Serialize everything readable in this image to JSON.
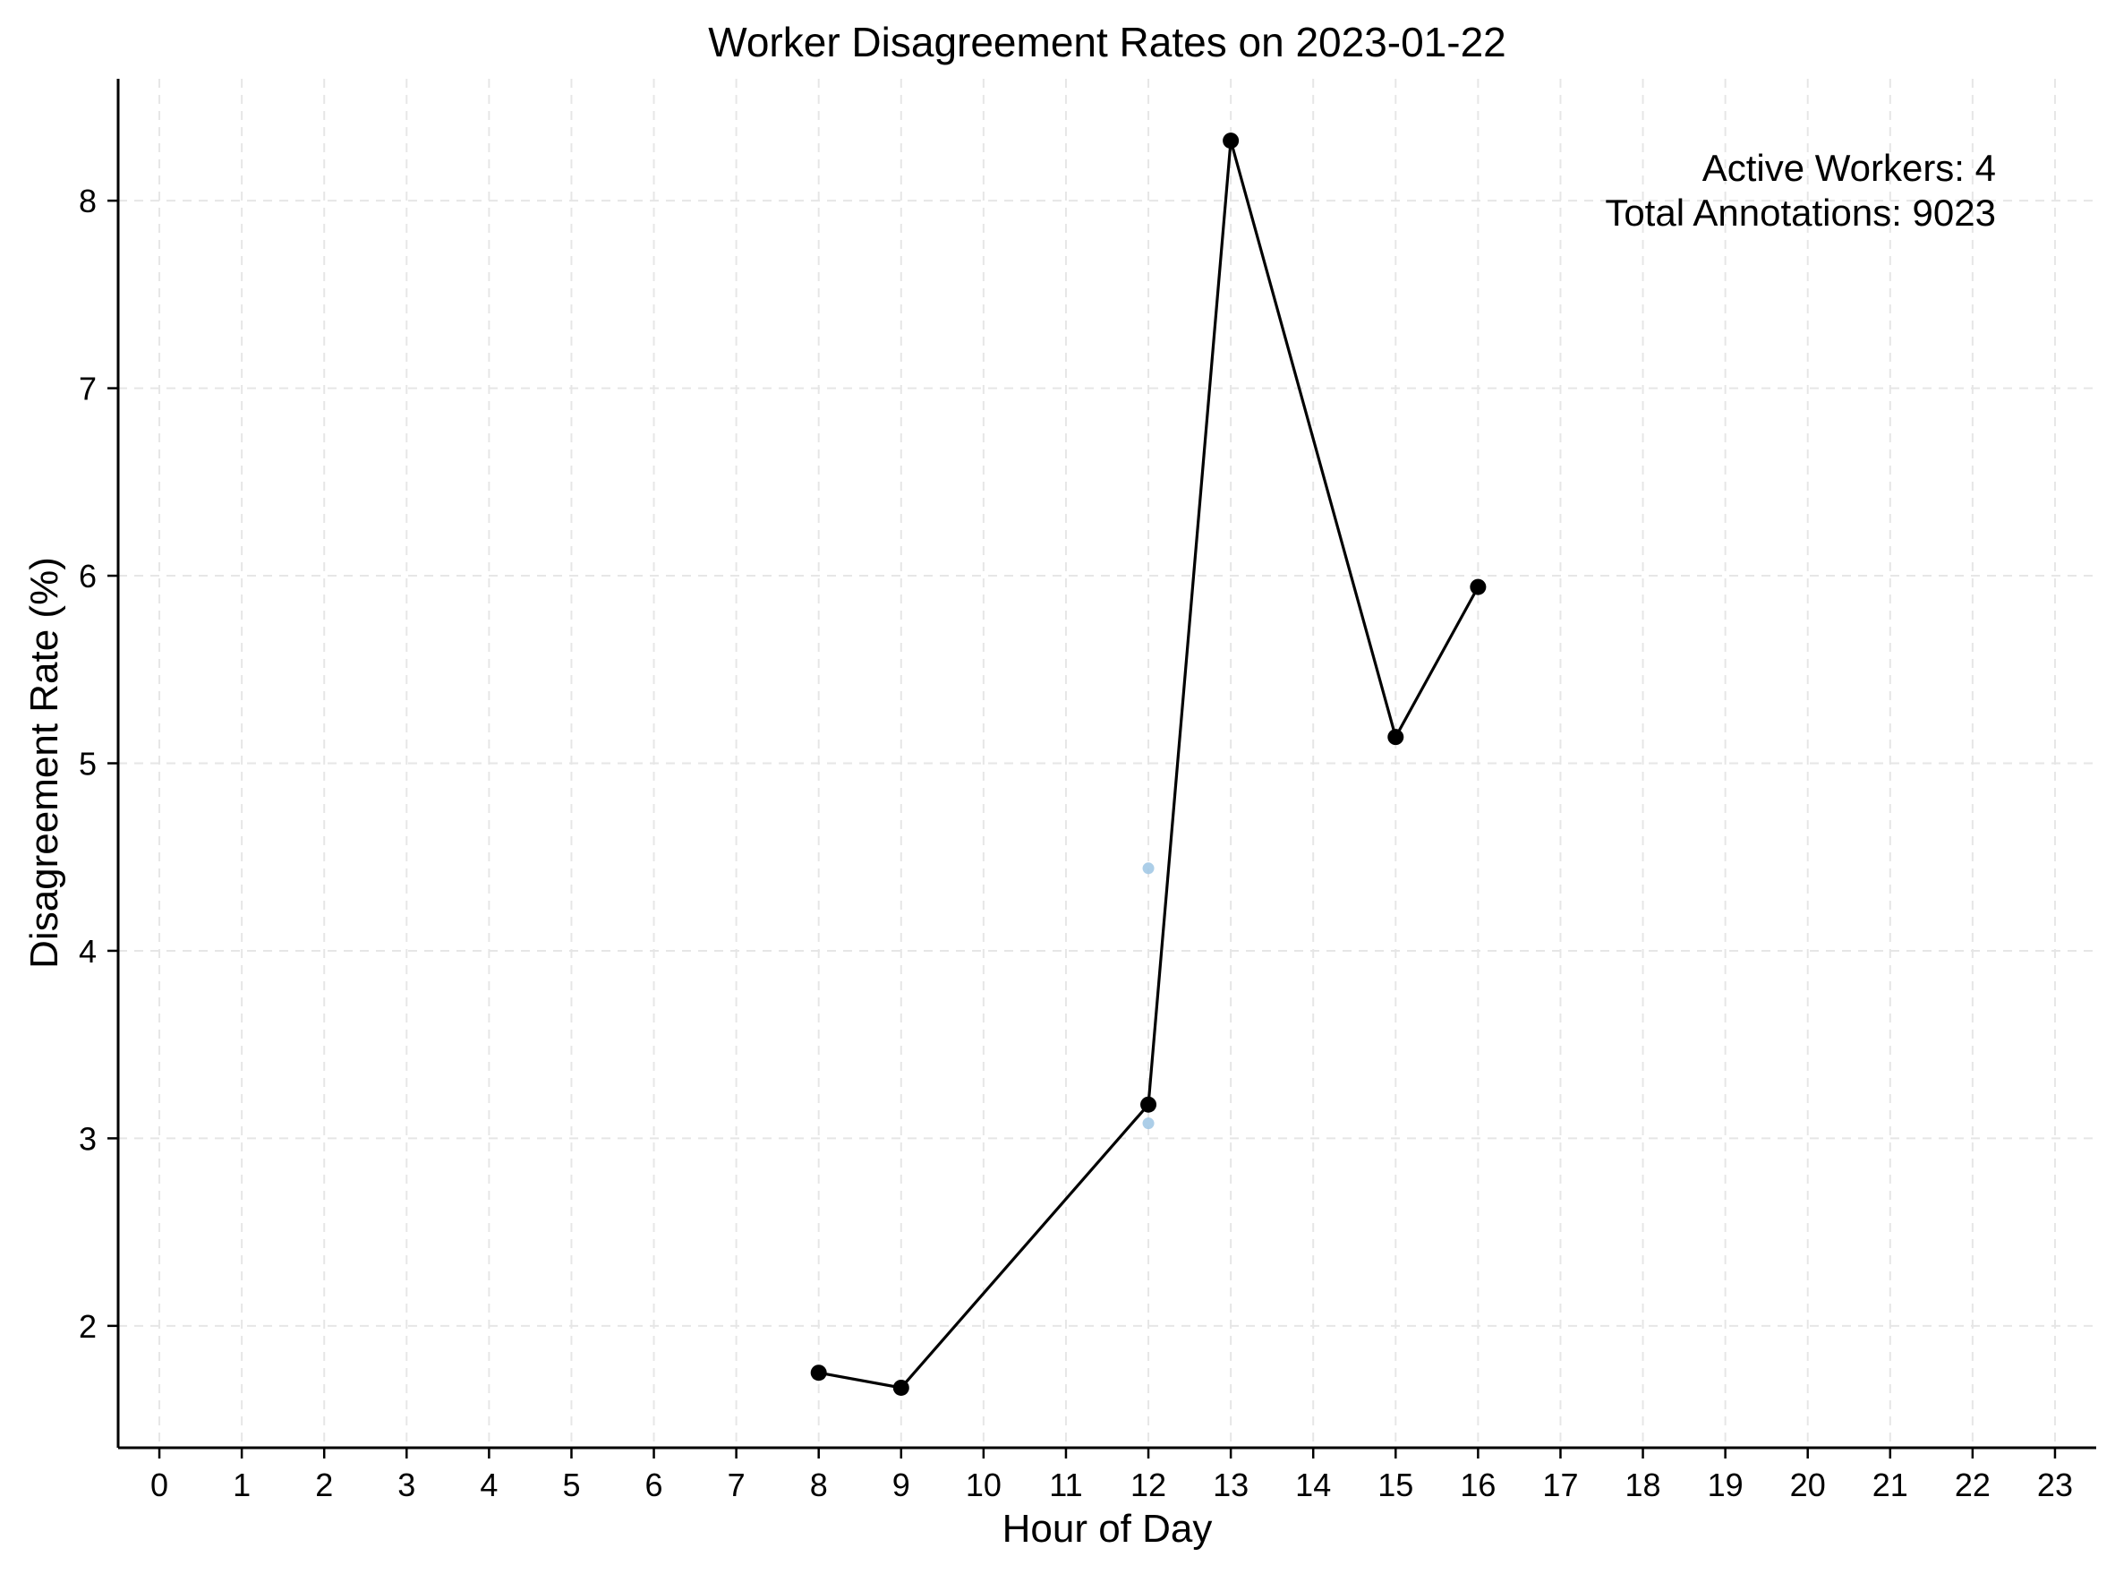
{
  "chart_data": {
    "type": "line",
    "title": "Worker Disagreement Rates on 2023-01-22",
    "xlabel": "Hour of Day",
    "ylabel": "Disagreement Rate (%)",
    "xlim": [
      -0.5,
      23.5
    ],
    "ylim": [
      1.35,
      8.65
    ],
    "xticks": [
      0,
      1,
      2,
      3,
      4,
      5,
      6,
      7,
      8,
      9,
      10,
      11,
      12,
      13,
      14,
      15,
      16,
      17,
      18,
      19,
      20,
      21,
      22,
      23
    ],
    "yticks": [
      2,
      3,
      4,
      5,
      6,
      7,
      8
    ],
    "grid": true,
    "series": [
      {
        "style": "line-with-markers",
        "color": "#000000",
        "points": [
          {
            "x": 8,
            "y": 1.75
          },
          {
            "x": 9,
            "y": 1.67
          },
          {
            "x": 12,
            "y": 3.18
          },
          {
            "x": 13,
            "y": 8.32
          },
          {
            "x": 15,
            "y": 5.14
          },
          {
            "x": 16,
            "y": 5.94
          }
        ]
      },
      {
        "style": "scatter",
        "color": "#9ec6e4",
        "points": [
          {
            "x": 12,
            "y": 4.44
          },
          {
            "x": 12,
            "y": 3.08
          }
        ]
      }
    ],
    "annotations": {
      "active_workers": "Active Workers: 4",
      "total_annotations": "Total Annotations: 9023"
    }
  }
}
